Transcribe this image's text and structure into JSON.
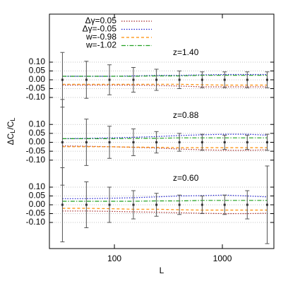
{
  "chart_data": [
    {
      "type": "errorbar-lines",
      "annotation": "z=1.40",
      "legend": "upper left",
      "ylim": [
        -0.176,
        0.372
      ],
      "yticks": [
        {
          "value": 0.1,
          "label": "0.10"
        },
        {
          "value": 0.05,
          "label": "0.05"
        },
        {
          "value": 0,
          "label": "0.00"
        },
        {
          "value": -0.05,
          "label": "-0.05"
        },
        {
          "value": -0.1,
          "label": "-0.10"
        }
      ],
      "x": [
        33,
        55,
        90,
        150,
        245,
        400,
        650,
        1050,
        1700,
        2600
      ],
      "errorbars": {
        "values": [
          0,
          0,
          0,
          0,
          0,
          0,
          0,
          0,
          0,
          0
        ],
        "errors": [
          0.155,
          0.105,
          0.085,
          0.07,
          0.06,
          0.05,
          0.045,
          0.045,
          0.045,
          0.045
        ]
      },
      "series": [
        {
          "name": "Δγ=0.05",
          "color": "#a52a2a",
          "style": "dotted",
          "values": [
            -0.03,
            -0.03,
            -0.03,
            -0.03,
            -0.032,
            -0.035,
            -0.04,
            -0.04,
            -0.04,
            -0.04
          ]
        },
        {
          "name": "Δγ=-0.05",
          "color": "#1a1ad0",
          "style": "dotted",
          "values": [
            0.02,
            0.02,
            0.02,
            0.022,
            0.025,
            0.025,
            0.028,
            0.03,
            0.03,
            0.03
          ]
        },
        {
          "name": "w=-0.98",
          "color": "#ff8c00",
          "style": "dashed",
          "values": [
            -0.025,
            -0.025,
            -0.025,
            -0.025,
            -0.025,
            -0.025,
            -0.028,
            -0.03,
            -0.03,
            -0.03
          ]
        },
        {
          "name": "w=-1.02",
          "color": "#22a022",
          "style": "dashdot",
          "values": [
            0.02,
            0.02,
            0.02,
            0.02,
            0.022,
            0.022,
            0.025,
            0.025,
            0.025,
            0.025
          ]
        }
      ]
    },
    {
      "type": "errorbar-lines",
      "annotation": "z=0.88",
      "ylabel": "ΔC_L/C_L",
      "ylim": [
        -0.176,
        0.176
      ],
      "yticks": [
        {
          "value": 0.1,
          "label": "0.10"
        },
        {
          "value": 0.05,
          "label": "0.05"
        },
        {
          "value": 0,
          "label": "0.00"
        },
        {
          "value": -0.05,
          "label": "-0.05"
        },
        {
          "value": -0.1,
          "label": "-0.10"
        }
      ],
      "x": [
        33,
        55,
        90,
        150,
        245,
        400,
        650,
        1050,
        1700,
        2600
      ],
      "errorbars": {
        "values": [
          0,
          0,
          0,
          0,
          0,
          0,
          0,
          0,
          0,
          0
        ],
        "errors": [
          0.24,
          0.13,
          0.09,
          0.075,
          0.06,
          0.05,
          0.045,
          0.04,
          0.04,
          0.045
        ]
      },
      "series": [
        {
          "color": "#a52a2a",
          "style": "dotted",
          "values": [
            -0.02,
            -0.022,
            -0.025,
            -0.028,
            -0.032,
            -0.038,
            -0.042,
            -0.045,
            -0.045,
            -0.042
          ]
        },
        {
          "color": "#1a1ad0",
          "style": "dotted",
          "values": [
            0.02,
            0.022,
            0.025,
            0.028,
            0.032,
            0.038,
            0.042,
            0.045,
            0.045,
            0.04
          ]
        },
        {
          "color": "#ff8c00",
          "style": "dashed",
          "values": [
            -0.025,
            -0.025,
            -0.025,
            -0.027,
            -0.028,
            -0.03,
            -0.03,
            -0.03,
            -0.03,
            -0.03
          ]
        },
        {
          "color": "#22a022",
          "style": "dashdot",
          "values": [
            0.02,
            0.02,
            0.02,
            0.022,
            0.022,
            0.025,
            0.025,
            0.025,
            0.025,
            0.025
          ]
        }
      ]
    },
    {
      "type": "errorbar-lines",
      "annotation": "z=0.60",
      "xlabel": "L",
      "xlog": true,
      "xlim": [
        25,
        3000
      ],
      "xticks": [
        100,
        1000
      ],
      "ylim": [
        -0.248,
        0.176
      ],
      "yticks": [
        {
          "value": 0.1,
          "label": "0.10"
        },
        {
          "value": 0.05,
          "label": "0.05"
        },
        {
          "value": 0,
          "label": "0.00"
        },
        {
          "value": -0.05,
          "label": "-0.05"
        },
        {
          "value": -0.1,
          "label": "-0.10"
        }
      ],
      "x": [
        33,
        55,
        90,
        150,
        245,
        400,
        650,
        1050,
        1700,
        2600
      ],
      "errorbars": {
        "values": [
          0,
          0,
          0,
          0,
          0,
          0,
          0,
          0,
          0,
          0
        ],
        "errors": [
          0.21,
          0.13,
          0.1,
          0.08,
          0.065,
          0.055,
          0.05,
          0.055,
          0.08,
          0.22
        ]
      },
      "series": [
        {
          "color": "#a52a2a",
          "style": "dotted",
          "values": [
            -0.035,
            -0.035,
            -0.037,
            -0.04,
            -0.042,
            -0.045,
            -0.048,
            -0.05,
            -0.05,
            -0.048
          ]
        },
        {
          "color": "#1a1ad0",
          "style": "dotted",
          "values": [
            0.035,
            0.035,
            0.037,
            0.04,
            0.045,
            0.05,
            0.052,
            0.055,
            0.05,
            0.045
          ]
        },
        {
          "color": "#ff8c00",
          "style": "dashed",
          "values": [
            -0.02,
            -0.02,
            -0.022,
            -0.025,
            -0.025,
            -0.028,
            -0.03,
            -0.03,
            -0.03,
            -0.03
          ]
        },
        {
          "color": "#22a022",
          "style": "dashdot",
          "values": [
            0.02,
            0.02,
            0.02,
            0.02,
            0.022,
            0.022,
            0.025,
            0.025,
            0.025,
            0.025
          ]
        }
      ]
    }
  ]
}
